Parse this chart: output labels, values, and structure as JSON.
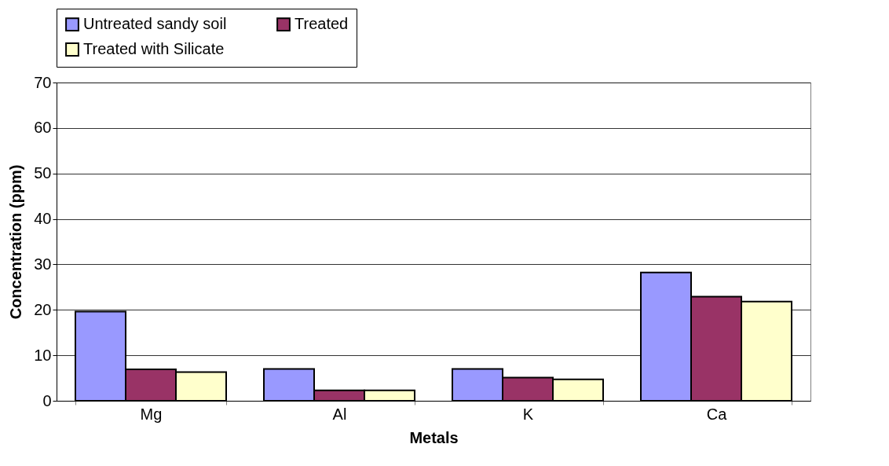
{
  "chart_data": {
    "type": "bar",
    "xlabel": "Metals",
    "ylabel": "Concentration (ppm)",
    "categories": [
      "Mg",
      "Al",
      "K",
      "Ca"
    ],
    "series": [
      {
        "name": "Untreated sandy soil",
        "color": "#9999ff",
        "values": [
          19.6,
          7.0,
          7.0,
          28.2
        ]
      },
      {
        "name": "Treated",
        "color": "#993366",
        "values": [
          6.9,
          2.3,
          5.1,
          22.9
        ]
      },
      {
        "name": "Treated with Silicate",
        "color": "#ffffcc",
        "values": [
          6.3,
          2.3,
          4.7,
          21.8
        ]
      }
    ],
    "ylim": [
      0,
      70
    ],
    "yticks": [
      0,
      10,
      20,
      30,
      40,
      50,
      60,
      70
    ],
    "grid": "y",
    "legend": "top"
  }
}
